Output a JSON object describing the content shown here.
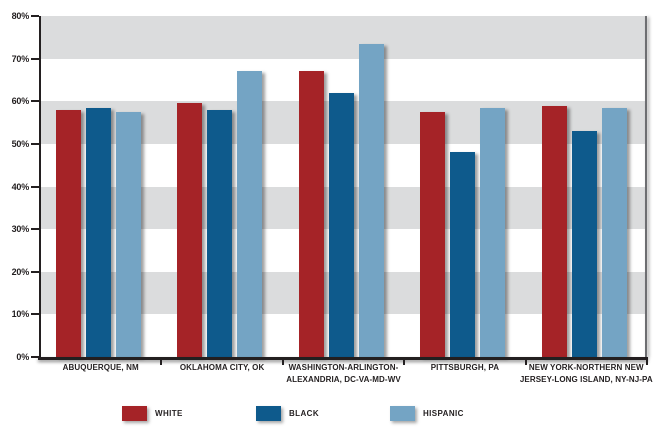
{
  "chart_data": {
    "type": "bar",
    "title": "",
    "xlabel": "",
    "ylabel": "",
    "categories": [
      "ABUQUERQUE, NM",
      "OKLAHOMA CITY, OK",
      "WASHINGTON-ARLINGTON-ALEXANDRIA, DC-VA-MD-WV",
      "PITTSBURGH, PA",
      "NEW YORK-NORTHERN NEW JERSEY-LONG ISLAND, NY-NJ-PA"
    ],
    "category_label_lines": [
      [
        "ABUQUERQUE, NM"
      ],
      [
        "OKLAHOMA CITY, OK"
      ],
      [
        "WASHINGTON-ARLINGTON-",
        "ALEXANDRIA, DC-VA-MD-WV"
      ],
      [
        "PITTSBURGH, PA"
      ],
      [
        "NEW YORK-NORTHERN NEW",
        "JERSEY-LONG ISLAND, NY-NJ-PA"
      ]
    ],
    "series": [
      {
        "name": "WHITE",
        "color": "#A52327",
        "values": [
          58,
          59.5,
          67,
          57.5,
          59
        ]
      },
      {
        "name": "BLACK",
        "color": "#0E5A8C",
        "values": [
          58.5,
          58,
          62,
          48,
          53
        ]
      },
      {
        "name": "HISPANIC",
        "color": "#74A4C4",
        "values": [
          57.5,
          67,
          73.5,
          58.5,
          58.5
        ]
      }
    ],
    "ylim": [
      0,
      80
    ],
    "ytick_step": 10,
    "ytick_labels": [
      "0%",
      "10%",
      "20%",
      "30%",
      "40%",
      "50%",
      "60%",
      "70%",
      "80%"
    ],
    "grid": "alternating-horizontal-bands",
    "band_color": "#DBDCDD",
    "background_color": "#FFFFFF",
    "axis_color": "#231F20",
    "legend": {
      "position": "bottom",
      "entries": [
        "WHITE",
        "BLACK",
        "HISPANIC"
      ]
    }
  }
}
